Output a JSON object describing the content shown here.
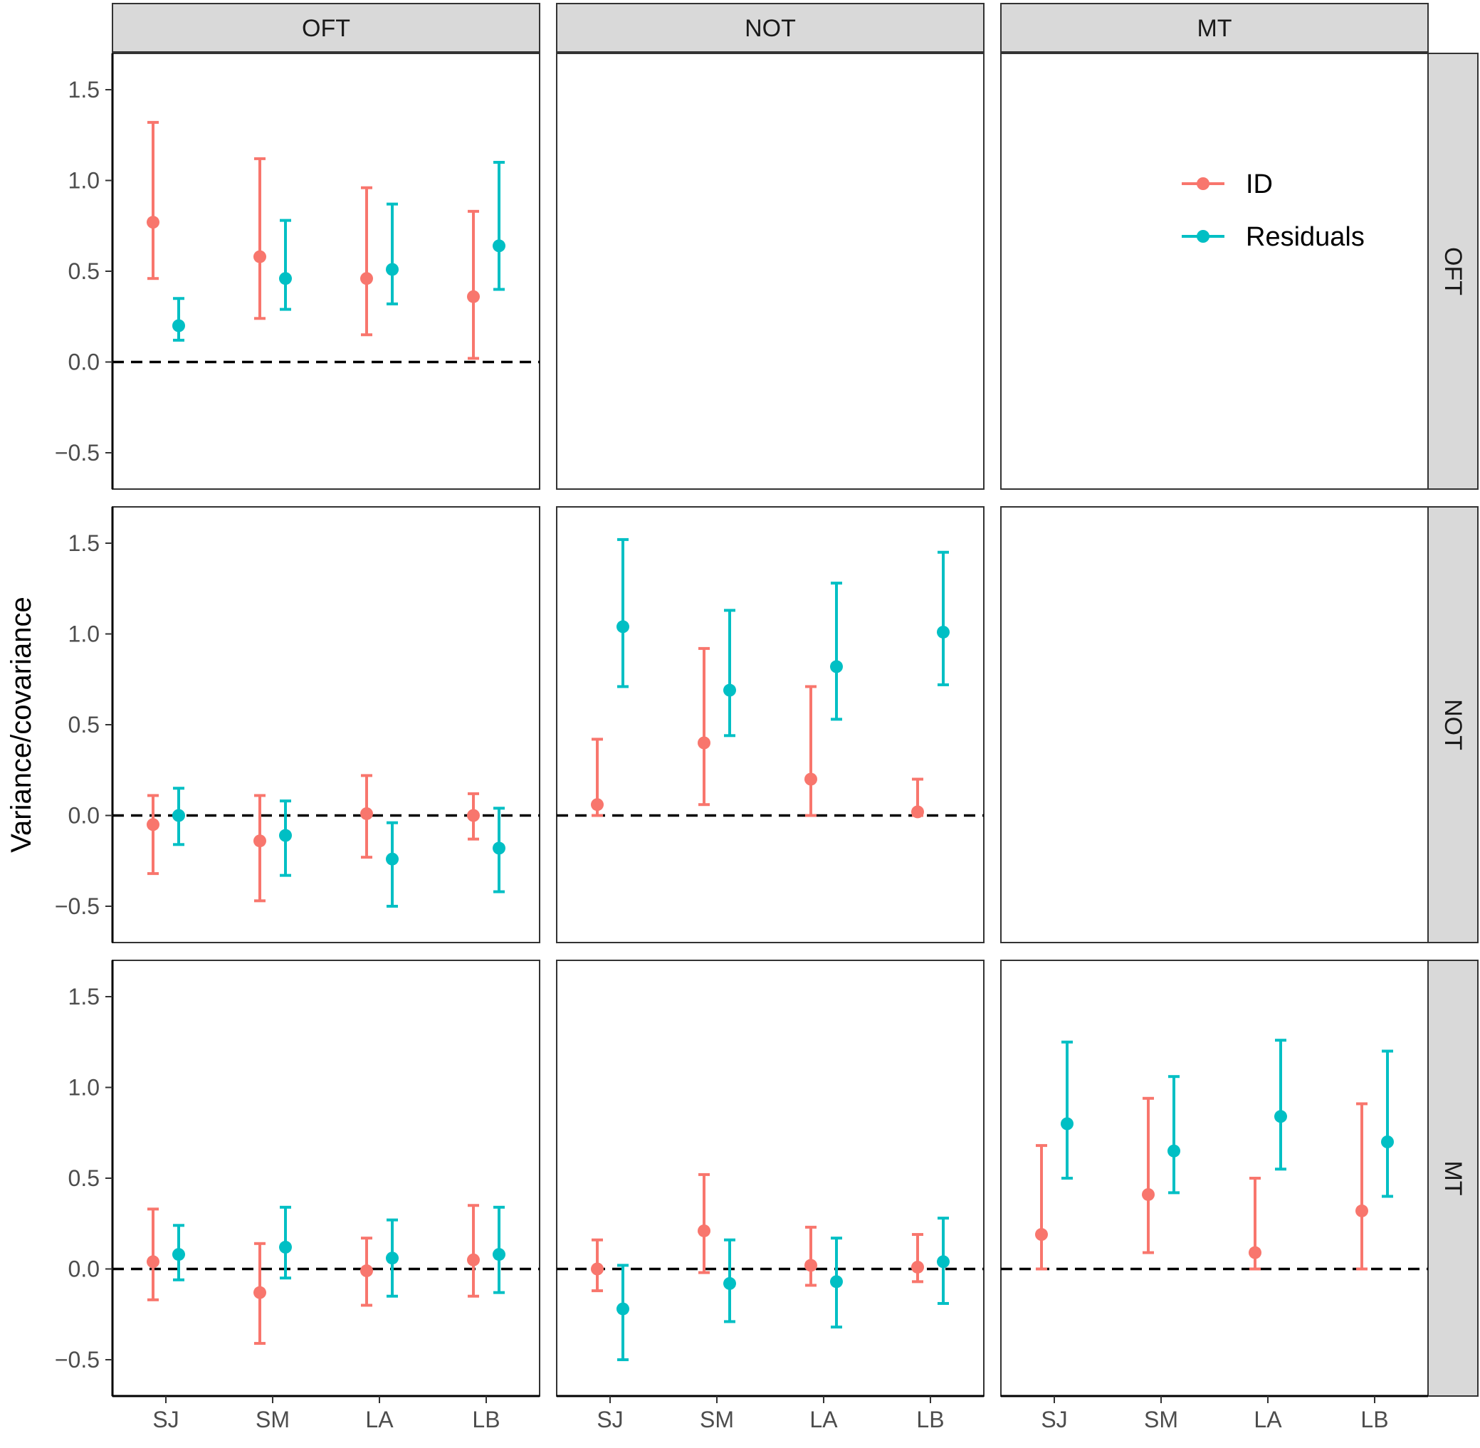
{
  "chart_data": {
    "type": "errorbar-facet-grid",
    "ylabel": "Variance/covariance",
    "xlabel": "",
    "ylim": [
      -0.7,
      1.7
    ],
    "yticks": [
      -0.5,
      0.0,
      0.5,
      1.0,
      1.5
    ],
    "ytick_labels": [
      "−0.5",
      "0.0",
      "0.5",
      "1.0",
      "1.5"
    ],
    "reference_line": 0,
    "categories": [
      "SJ",
      "SM",
      "LA",
      "LB"
    ],
    "col_facets": [
      "OFT",
      "NOT",
      "MT"
    ],
    "row_facets": [
      "OFT",
      "NOT",
      "MT"
    ],
    "legend": {
      "position": "top-right",
      "entries": [
        {
          "label": "ID",
          "color": "#F8766D"
        },
        {
          "label": "Residuals",
          "color": "#00BFC4"
        }
      ]
    },
    "panels": [
      {
        "row": "OFT",
        "col": "OFT",
        "series": [
          {
            "name": "ID",
            "values": [
              0.77,
              0.58,
              0.46,
              0.36
            ],
            "lower": [
              0.46,
              0.24,
              0.15,
              0.02
            ],
            "upper": [
              1.32,
              1.12,
              0.96,
              0.83
            ]
          },
          {
            "name": "Residuals",
            "values": [
              0.2,
              0.46,
              0.51,
              0.64
            ],
            "lower": [
              0.12,
              0.29,
              0.32,
              0.4
            ],
            "upper": [
              0.35,
              0.78,
              0.87,
              1.1
            ]
          }
        ]
      },
      {
        "row": "OFT",
        "col": "NOT",
        "series": []
      },
      {
        "row": "OFT",
        "col": "MT",
        "series": []
      },
      {
        "row": "NOT",
        "col": "OFT",
        "series": [
          {
            "name": "ID",
            "values": [
              -0.05,
              -0.14,
              0.01,
              0.0
            ],
            "lower": [
              -0.32,
              -0.47,
              -0.23,
              -0.13
            ],
            "upper": [
              0.11,
              0.11,
              0.22,
              0.12
            ]
          },
          {
            "name": "Residuals",
            "values": [
              0.0,
              -0.11,
              -0.24,
              -0.18
            ],
            "lower": [
              -0.16,
              -0.33,
              -0.5,
              -0.42
            ],
            "upper": [
              0.15,
              0.08,
              -0.04,
              0.04
            ]
          }
        ]
      },
      {
        "row": "NOT",
        "col": "NOT",
        "series": [
          {
            "name": "ID",
            "values": [
              0.06,
              0.4,
              0.2,
              0.02
            ],
            "lower": [
              0.0,
              0.06,
              0.0,
              0.0
            ],
            "upper": [
              0.42,
              0.92,
              0.71,
              0.2
            ]
          },
          {
            "name": "Residuals",
            "values": [
              1.04,
              0.69,
              0.82,
              1.01
            ],
            "lower": [
              0.71,
              0.44,
              0.53,
              0.72
            ],
            "upper": [
              1.52,
              1.13,
              1.28,
              1.45
            ]
          }
        ]
      },
      {
        "row": "NOT",
        "col": "MT",
        "series": []
      },
      {
        "row": "MT",
        "col": "OFT",
        "series": [
          {
            "name": "ID",
            "values": [
              0.04,
              -0.13,
              -0.01,
              0.05
            ],
            "lower": [
              -0.17,
              -0.41,
              -0.2,
              -0.15
            ],
            "upper": [
              0.33,
              0.14,
              0.17,
              0.35
            ]
          },
          {
            "name": "Residuals",
            "values": [
              0.08,
              0.12,
              0.06,
              0.08
            ],
            "lower": [
              -0.06,
              -0.05,
              -0.15,
              -0.13
            ],
            "upper": [
              0.24,
              0.34,
              0.27,
              0.34
            ]
          }
        ]
      },
      {
        "row": "MT",
        "col": "NOT",
        "series": [
          {
            "name": "ID",
            "values": [
              0.0,
              0.21,
              0.02,
              0.01
            ],
            "lower": [
              -0.12,
              -0.02,
              -0.09,
              -0.07
            ],
            "upper": [
              0.16,
              0.52,
              0.23,
              0.19
            ]
          },
          {
            "name": "Residuals",
            "values": [
              -0.22,
              -0.08,
              -0.07,
              0.04
            ],
            "lower": [
              -0.5,
              -0.29,
              -0.32,
              -0.19
            ],
            "upper": [
              0.02,
              0.16,
              0.17,
              0.28
            ]
          }
        ]
      },
      {
        "row": "MT",
        "col": "MT",
        "series": [
          {
            "name": "ID",
            "values": [
              0.19,
              0.41,
              0.09,
              0.32
            ],
            "lower": [
              0.0,
              0.09,
              0.0,
              0.0
            ],
            "upper": [
              0.68,
              0.94,
              0.5,
              0.91
            ]
          },
          {
            "name": "Residuals",
            "values": [
              0.8,
              0.65,
              0.84,
              0.7
            ],
            "lower": [
              0.5,
              0.42,
              0.55,
              0.4
            ],
            "upper": [
              1.25,
              1.06,
              1.26,
              1.2
            ]
          }
        ]
      }
    ]
  }
}
